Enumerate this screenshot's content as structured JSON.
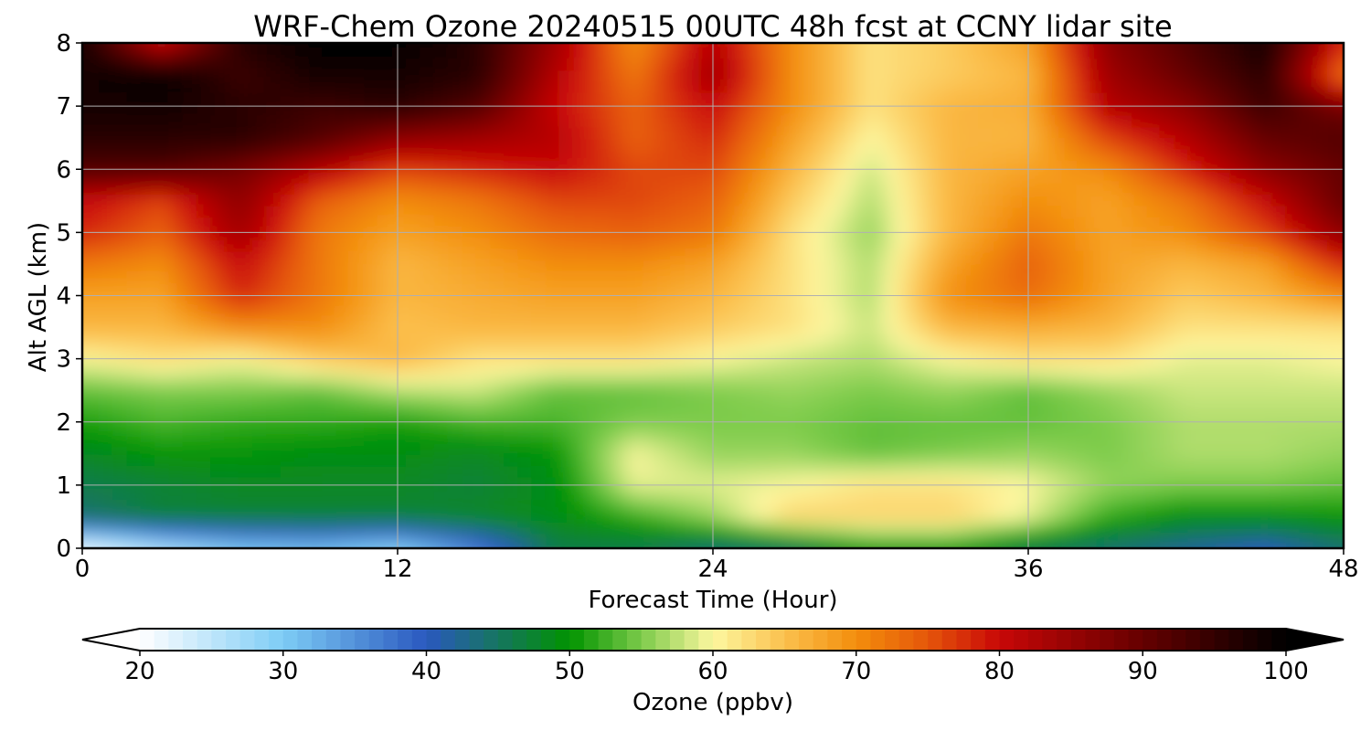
{
  "chart_data": {
    "type": "heatmap",
    "title": "WRF-Chem Ozone  20240515 00UTC 48h fcst at CCNY lidar site",
    "xlabel": "Forecast Time (Hour)",
    "ylabel": "Alt AGL (km)",
    "xlim": [
      0,
      48
    ],
    "ylim": [
      0,
      8
    ],
    "xticks": [
      0,
      12,
      24,
      36,
      48
    ],
    "yticks": [
      0,
      1,
      2,
      3,
      4,
      5,
      6,
      7,
      8
    ],
    "grid": true,
    "x": [
      0,
      3,
      6,
      9,
      12,
      15,
      18,
      21,
      24,
      27,
      30,
      33,
      36,
      39,
      42,
      45,
      48
    ],
    "y": [
      0,
      0.5,
      1,
      1.5,
      2,
      2.5,
      3,
      3.5,
      4,
      4.5,
      5,
      5.5,
      6,
      6.5,
      7,
      7.5,
      8
    ],
    "z": [
      [
        21,
        26,
        30,
        31,
        29,
        36,
        46,
        46,
        44,
        45,
        50,
        50,
        46,
        44,
        42,
        40,
        44
      ],
      [
        44,
        47,
        47,
        47,
        47,
        48,
        49,
        52,
        56,
        63,
        63,
        63,
        59,
        52,
        49,
        49,
        50
      ],
      [
        46,
        47,
        48,
        48,
        48,
        47,
        49,
        59,
        59,
        60,
        62,
        62,
        60,
        56,
        55,
        55,
        54
      ],
      [
        48,
        50,
        50,
        49,
        49,
        48,
        50,
        60,
        56,
        56,
        54,
        55,
        56,
        55,
        57,
        57,
        56
      ],
      [
        51,
        53,
        52,
        52,
        51,
        53,
        53,
        55,
        55,
        55,
        54,
        54,
        54,
        55,
        57,
        57,
        57
      ],
      [
        54,
        55,
        55,
        54,
        57,
        58,
        54,
        54,
        55,
        56,
        55,
        56,
        54,
        56,
        58,
        58,
        58
      ],
      [
        60,
        62,
        60,
        64,
        66,
        62,
        62,
        62,
        60,
        58,
        57,
        60,
        62,
        62,
        59,
        59,
        60
      ],
      [
        66,
        66,
        70,
        70,
        65,
        66,
        66,
        66,
        64,
        62,
        58,
        66,
        67,
        66,
        62,
        62,
        62
      ],
      [
        68,
        68,
        78,
        72,
        66,
        67,
        68,
        68,
        66,
        62,
        57,
        70,
        73,
        68,
        64,
        66,
        70
      ],
      [
        72,
        70,
        80,
        72,
        66,
        68,
        70,
        70,
        68,
        62,
        57,
        68,
        74,
        68,
        66,
        68,
        78
      ],
      [
        78,
        74,
        84,
        72,
        68,
        70,
        73,
        74,
        72,
        62,
        56,
        66,
        72,
        68,
        70,
        76,
        86
      ],
      [
        80,
        76,
        86,
        74,
        70,
        72,
        76,
        76,
        74,
        64,
        57,
        66,
        70,
        68,
        72,
        80,
        90
      ],
      [
        92,
        92,
        88,
        82,
        76,
        78,
        80,
        76,
        76,
        66,
        58,
        66,
        68,
        70,
        78,
        86,
        90
      ],
      [
        96,
        96,
        96,
        92,
        86,
        84,
        82,
        74,
        78,
        68,
        60,
        66,
        66,
        76,
        82,
        90,
        92
      ],
      [
        98,
        98,
        96,
        94,
        96,
        92,
        80,
        74,
        80,
        70,
        62,
        66,
        67,
        82,
        86,
        94,
        88
      ],
      [
        98,
        100,
        94,
        98,
        98,
        96,
        82,
        72,
        84,
        70,
        62,
        64,
        66,
        84,
        90,
        96,
        72
      ],
      [
        98,
        80,
        96,
        100,
        100,
        96,
        84,
        70,
        82,
        70,
        62,
        64,
        68,
        86,
        92,
        98,
        78
      ]
    ],
    "colorbar": {
      "label": "Ozone  (ppbv)",
      "min": 20,
      "max": 100,
      "ticks": [
        20,
        30,
        40,
        50,
        60,
        70,
        80,
        90,
        100
      ],
      "extend": "both",
      "colors": [
        {
          "v": 20,
          "c": "#ffffff"
        },
        {
          "v": 30,
          "c": "#7dccf5"
        },
        {
          "v": 40,
          "c": "#2a58bf"
        },
        {
          "v": 50,
          "c": "#019300"
        },
        {
          "v": 55,
          "c": "#7ccb4a"
        },
        {
          "v": 60,
          "c": "#fdf7a0"
        },
        {
          "v": 65,
          "c": "#fbc04e"
        },
        {
          "v": 70,
          "c": "#f38e0c"
        },
        {
          "v": 75,
          "c": "#e5560a"
        },
        {
          "v": 80,
          "c": "#c80707"
        },
        {
          "v": 90,
          "c": "#650000"
        },
        {
          "v": 100,
          "c": "#000000"
        }
      ]
    }
  }
}
